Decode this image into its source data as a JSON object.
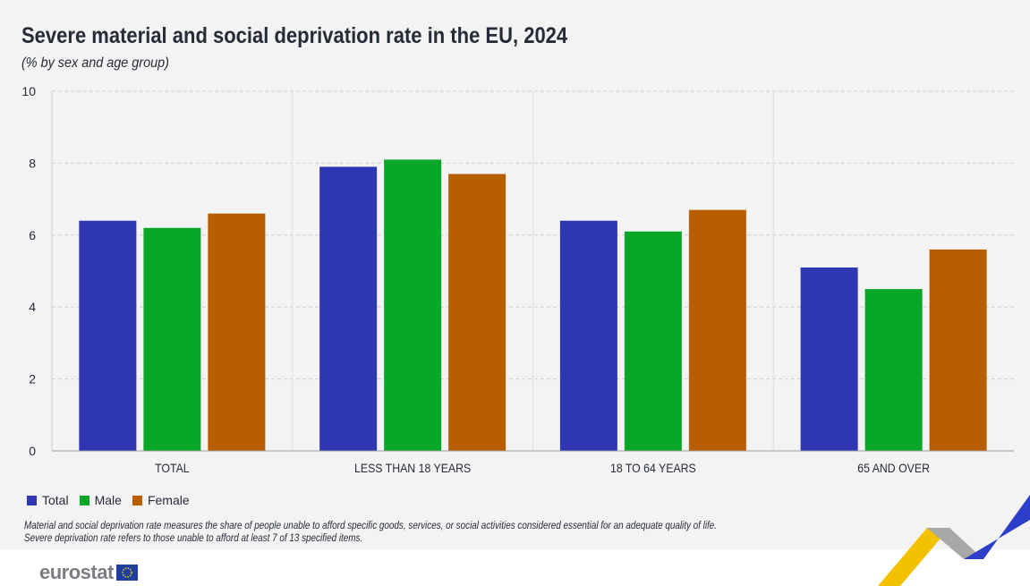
{
  "title": "Severe material and social deprivation rate in the EU, 2024",
  "subtitle": "(% by sex and age group)",
  "notes": [
    "Material and social deprivation rate measures the share of people unable to afford specific goods, services, or social activities considered essential for an adequate quality of life.",
    "Severe deprivation rate refers to those unable to afford at least 7 of 13 specified items."
  ],
  "logo": "eurostat",
  "chart_data": {
    "type": "bar",
    "title": "Severe material and social deprivation rate in the EU, 2024",
    "subtitle": "(% by sex and age group)",
    "categories": [
      "TOTAL",
      "LESS THAN 18 YEARS",
      "18 TO 64 YEARS",
      "65 AND OVER"
    ],
    "series": [
      {
        "name": "Total",
        "color": "#2e37b1",
        "values": [
          6.4,
          7.9,
          6.4,
          5.1
        ]
      },
      {
        "name": "Male",
        "color": "#08a728",
        "values": [
          6.2,
          8.1,
          6.1,
          4.5
        ]
      },
      {
        "name": "Female",
        "color": "#b65e00",
        "values": [
          6.6,
          7.7,
          6.7,
          5.6
        ]
      }
    ],
    "ylim": [
      0,
      10
    ],
    "yticks": [
      0,
      2,
      4,
      6,
      8,
      10
    ],
    "grid": true,
    "legend": "bottom-left"
  }
}
